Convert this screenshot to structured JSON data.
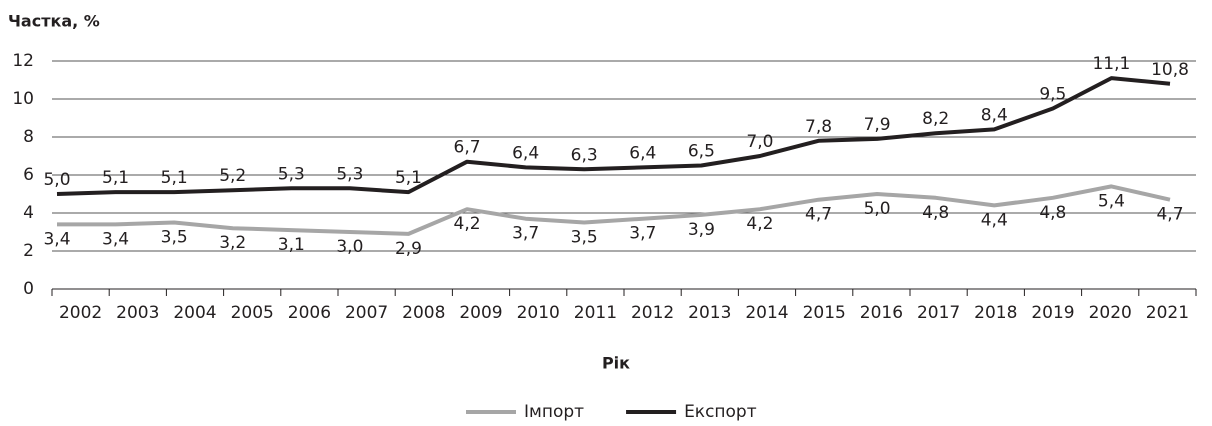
{
  "chart_data": {
    "type": "line",
    "y_label": "Частка, %",
    "x_label": "Рік",
    "categories": [
      "2002",
      "2003",
      "2004",
      "2005",
      "2006",
      "2007",
      "2008",
      "2009",
      "2010",
      "2011",
      "2012",
      "2013",
      "2014",
      "2015",
      "2016",
      "2017",
      "2018",
      "2019",
      "2020",
      "2021"
    ],
    "series": [
      {
        "name": "Імпорт",
        "color": "#a6a6a6",
        "values": [
          3.4,
          3.4,
          3.5,
          3.2,
          3.1,
          3.0,
          2.9,
          4.2,
          3.7,
          3.5,
          3.7,
          3.9,
          4.2,
          4.7,
          5.0,
          4.8,
          4.4,
          4.8,
          5.4,
          4.7
        ],
        "value_labels": [
          "3,4",
          "3,4",
          "3,5",
          "3,2",
          "3,1",
          "3,0",
          "2,9",
          "4,2",
          "3,7",
          "3,5",
          "3,7",
          "3,9",
          "4,2",
          "4,7",
          "5,0",
          "4,8",
          "4,4",
          "4,8",
          "5,4",
          "4,7"
        ]
      },
      {
        "name": "Експорт",
        "color": "#231f20",
        "values": [
          5.0,
          5.1,
          5.1,
          5.2,
          5.3,
          5.3,
          5.1,
          6.7,
          6.4,
          6.3,
          6.4,
          6.5,
          7.0,
          7.8,
          7.9,
          8.2,
          8.4,
          9.5,
          11.1,
          10.8
        ],
        "value_labels": [
          "5,0",
          "5,1",
          "5,1",
          "5,2",
          "5,3",
          "5,3",
          "5,1",
          "6,7",
          "6,4",
          "6,3",
          "6,4",
          "6,5",
          "7,0",
          "7,8",
          "7,9",
          "8,2",
          "8,4",
          "9,5",
          "11,1",
          "10,8"
        ]
      }
    ],
    "ylim": [
      0,
      12
    ],
    "yticks": [
      0,
      2,
      4,
      6,
      8,
      10,
      12
    ],
    "grid": true,
    "legend": "bottom"
  }
}
